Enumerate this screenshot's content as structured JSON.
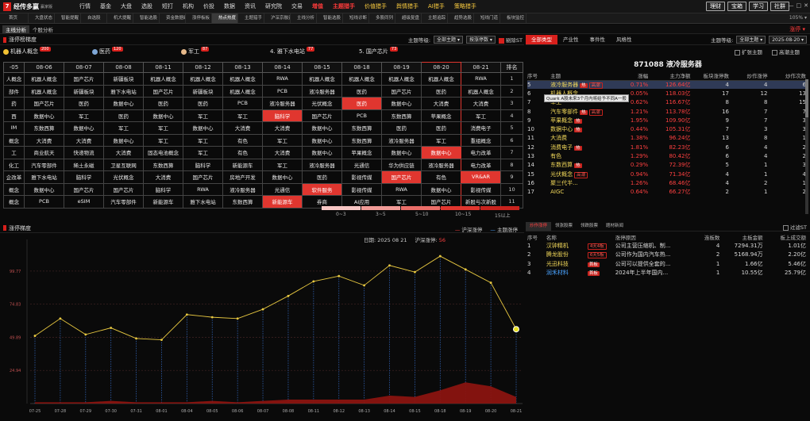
{
  "app": {
    "name": "经传多赢",
    "edition": "赢家版",
    "menu": [
      {
        "label": "行情",
        "style": ""
      },
      {
        "label": "基金",
        "style": ""
      },
      {
        "label": "大盘",
        "style": ""
      },
      {
        "label": "选股",
        "style": ""
      },
      {
        "label": "短打",
        "style": ""
      },
      {
        "label": "机构",
        "style": ""
      },
      {
        "label": "价投",
        "style": ""
      },
      {
        "label": "数据",
        "style": ""
      },
      {
        "label": "资讯",
        "style": ""
      },
      {
        "label": "研究院",
        "style": ""
      },
      {
        "label": "交易",
        "style": ""
      },
      {
        "label": "增值",
        "style": "red"
      },
      {
        "label": "主题猎手",
        "style": "red"
      },
      {
        "label": "价值猎手",
        "style": "gold"
      },
      {
        "label": "舆情猎手",
        "style": "gold"
      },
      {
        "label": "AI猎手",
        "style": "gold"
      },
      {
        "label": "策略猎手",
        "style": "gold"
      }
    ],
    "buttons": [
      "理财",
      "宝箱",
      "学习",
      "社群"
    ],
    "window_controls": [
      "—",
      "□",
      "✕"
    ]
  },
  "tabs": {
    "items": [
      "首页",
      "大盘状态",
      "智能提醒",
      "自选股",
      "机大提醒",
      "智能选股",
      "资金数据统计",
      "涨停板板",
      "热点热度",
      "主题猎手",
      "沪深京融资",
      "主线分析",
      "智能选股",
      "短线诊断",
      "多股同列",
      "超级复盘",
      "主题追踪",
      "趋势选股",
      "短线门道",
      "板块监控"
    ],
    "active_index": 8,
    "zoom": "105%"
  },
  "subtabs": {
    "items": [
      "主线分析",
      "个股分析"
    ],
    "active_index": 0,
    "exit_label": "涨停 ▾"
  },
  "ladder": {
    "title": "涨停榜梯度",
    "ctrl_label": "主题等级:",
    "ctrl_select": "全部主题",
    "ctrl_select2": "按涨停数",
    "exclude_st": "剔除ST",
    "hot": [
      {
        "name": "机器人概念",
        "count": "200",
        "color": "#f2c233"
      },
      {
        "name": "医药",
        "count": "120",
        "color": "#7fa7d6"
      },
      {
        "name": "军工",
        "count": "87",
        "color": "#e7b98a"
      },
      {
        "name": "4. 雅下水电站",
        "count": "77",
        "color": ""
      },
      {
        "name": "5. 国产芯片",
        "count": "73",
        "color": ""
      }
    ],
    "columns": [
      "-05",
      "08-06",
      "08-07",
      "08-08",
      "08-11",
      "08-12",
      "08-13",
      "08-14",
      "08-15",
      "08-18",
      "08-19",
      "08-20",
      "08-21",
      "排名"
    ],
    "selected_col": 11,
    "rows": [
      [
        "人概念",
        "机器人概念",
        "国产芯片",
        "新疆板块",
        "机器人概念",
        "机器人概念",
        "机器人概念",
        "RWA",
        "机器人概念",
        "机器人概念",
        "机器人概念",
        "机器人概念",
        "RWA",
        "1"
      ],
      [
        "部件",
        "机器人概念",
        "新疆板块",
        "雅下水电站",
        "国产芯片",
        "新疆板块",
        "机器人概念",
        "PCB",
        "液冷服务器",
        "医药",
        "国产芯片",
        "医药",
        "机器人概念",
        "2"
      ],
      [
        "药",
        "国产芯片",
        "医药",
        "数据中心",
        "医药",
        "医药",
        "PCB",
        "液冷服务器",
        "光伏概念",
        "医药",
        "数据中心",
        "大消费",
        "大消费",
        "3"
      ],
      [
        "西",
        "数据中心",
        "军工",
        "医药",
        "数据中心",
        "军工",
        "军工",
        "脑科学",
        "国产芯片",
        "PCB",
        "东数西算",
        "苹果概念",
        "军工",
        "4"
      ],
      [
        "IM",
        "东数西算",
        "数据中心",
        "军工",
        "军工",
        "数据中心",
        "大消费",
        "大消费",
        "数据中心",
        "东数西算",
        "医药",
        "医药",
        "消费电子",
        "5"
      ],
      [
        "概念",
        "大消费",
        "大消费",
        "数据中心",
        "军工",
        "军工",
        "有色",
        "军工",
        "数据中心",
        "东数西算",
        "液冷服务器",
        "军工",
        "重组概念",
        "6"
      ],
      [
        "工",
        "商业航天",
        "快递物流",
        "大消费",
        "固态电池概念",
        "军工",
        "有色",
        "大消费",
        "数据中心",
        "苹果概念",
        "数据中心",
        "数据中心",
        "电力改革",
        "7"
      ],
      [
        "化工",
        "汽车零部件",
        "稀土永磁",
        "卫星互联网",
        "东数西算",
        "脑科学",
        "新能源车",
        "军工",
        "液冷服务器",
        "光通信",
        "华为供应链",
        "液冷服务器",
        "电力改革",
        "8"
      ],
      [
        "企改革",
        "雅下水电站",
        "脑科学",
        "光伏概念",
        "大消费",
        "国产芯片",
        "房地产开发",
        "数据中心",
        "医药",
        "影视传媒",
        "国产芯片",
        "有色",
        "VR&AR",
        "9"
      ],
      [
        "概念",
        "数据中心",
        "国产芯片",
        "国产芯片",
        "脑科学",
        "RWA",
        "液冷服务器",
        "光通信",
        "软件服务",
        "影视传媒",
        "RWA",
        "数据中心",
        "影视传媒",
        "10"
      ],
      [
        "概念",
        "PCB",
        "eSIM",
        "汽车零部件",
        "新能源车",
        "雅下水电站",
        "东数西算",
        "新能源车",
        "券商",
        "AI应用",
        "军工",
        "国产芯片",
        "新股与次新股",
        "11"
      ]
    ],
    "highlights": [
      [
        2,
        9
      ],
      [
        3,
        7
      ],
      [
        6,
        11
      ],
      [
        8,
        10
      ],
      [
        8,
        12
      ],
      [
        9,
        8
      ],
      [
        10,
        7
      ]
    ],
    "legend": [
      {
        "label": "0~3",
        "color": "#f7c6c4"
      },
      {
        "label": "3~5",
        "color": "#f19b97"
      },
      {
        "label": "5~10",
        "color": "#ea6e69"
      },
      {
        "label": "10~15",
        "color": "#e0362f"
      },
      {
        "label": "15以上",
        "color": "#c8231e"
      }
    ]
  },
  "line_chart_panel": {
    "title": "涨停梯度",
    "legend_a": "沪深涨停",
    "legend_b": "主题涨停",
    "date_label": "日期: 2025 08 21",
    "hs_label": "沪深涨停:",
    "hs_value": "56"
  },
  "chart_data": {
    "type": "line",
    "x": [
      "07-25",
      "07-28",
      "07-29",
      "07-30",
      "07-31",
      "08-01",
      "08-04",
      "08-05",
      "08-06",
      "08-07",
      "08-08",
      "08-11",
      "08-12",
      "08-13",
      "08-14",
      "08-15",
      "08-18",
      "08-19",
      "08-20",
      "08-21"
    ],
    "series": [
      {
        "name": "沪深涨停",
        "values": [
          51,
          64,
          52,
          57,
          49,
          48,
          67,
          65,
          64,
          71,
          81,
          92,
          96,
          89,
          104,
          99,
          111,
          101,
          91,
          56
        ]
      },
      {
        "name": "主题涨停",
        "values": [
          1,
          1,
          1,
          2,
          1,
          1,
          1,
          2,
          1,
          2,
          3,
          3,
          3,
          3,
          6,
          5,
          10,
          16,
          13,
          5
        ]
      }
    ],
    "y_ticks": [
      24.94,
      49.89,
      74.83,
      99.77
    ],
    "ylim": [
      0,
      120
    ],
    "grid": true
  },
  "right_panel": {
    "tabs": [
      "全部类型",
      "产业性",
      "事件性",
      "风格性"
    ],
    "active_tab": 0,
    "ctrl_label": "主题等级:",
    "ctrl_select": "全部主题",
    "date": "2025-08-20",
    "opt_a": "扩张主题",
    "opt_b": "高潮主题",
    "stock_title": "871088 液冷服务器",
    "headers": [
      "序号",
      "主题",
      "涨幅",
      "主力净额",
      "板块涨停数",
      "炒作涨停",
      "炒作次数"
    ],
    "rows": [
      [
        "5",
        "液冷服务器",
        "热",
        "高潮",
        "0.71%",
        "126.64亿",
        "4",
        "4",
        "6"
      ],
      [
        "6",
        "机器人概念",
        "",
        "",
        "0.05%",
        "118.03亿",
        "17",
        "12",
        "13"
      ],
      [
        "7",
        "军工",
        "",
        "",
        "0.62%",
        "116.67亿",
        "8",
        "8",
        "15"
      ],
      [
        "8",
        "汽车零部件",
        "热",
        "高潮",
        "1.21%",
        "113.78亿",
        "16",
        "7",
        "7"
      ],
      [
        "9",
        "苹果概念",
        "热",
        "",
        "1.95%",
        "109.90亿",
        "9",
        "7",
        "3"
      ],
      [
        "10",
        "数据中心",
        "热",
        "",
        "0.44%",
        "105.31亿",
        "7",
        "3",
        "3"
      ],
      [
        "11",
        "大消费",
        "",
        "",
        "1.38%",
        "96.24亿",
        "13",
        "8",
        "1"
      ],
      [
        "12",
        "消费电子",
        "热",
        "",
        "1.81%",
        "82.23亿",
        "6",
        "4",
        "2"
      ],
      [
        "13",
        "有色",
        "",
        "",
        "1.29%",
        "80.42亿",
        "6",
        "4",
        "2"
      ],
      [
        "14",
        "东数西算",
        "热",
        "",
        "0.29%",
        "72.39亿",
        "5",
        "1",
        "3"
      ],
      [
        "15",
        "光伏概念",
        "",
        "高潮",
        "0.94%",
        "71.34亿",
        "4",
        "1",
        "4"
      ],
      [
        "16",
        "聚三代半...",
        "",
        "",
        "1.26%",
        "68.46亿",
        "4",
        "2",
        "1"
      ],
      [
        "17",
        "AIGC",
        "",
        "",
        "0.64%",
        "66.27亿",
        "2",
        "1",
        "2"
      ]
    ],
    "tooltip": "Quark A股未来3个月内将给予不同A一般"
  },
  "bottom_right": {
    "tabs": [
      "炒作涨停",
      "领涨股票",
      "领跌股票",
      "题材新闻"
    ],
    "active_tab": 0,
    "filter": "过滤ST",
    "headers": [
      "序号",
      "名称",
      "",
      "涨停原因",
      "连板数",
      "主板金额",
      "板上成交额"
    ],
    "rows": [
      {
        "no": "1",
        "name": "汉钟精机",
        "tag": "4天4板",
        "reason": "公司主营压缩机、制...",
        "boards": "4",
        "amount": "7294.31万",
        "vol": "1.01亿",
        "blue": false
      },
      {
        "no": "2",
        "name": "腾龙股份",
        "tag": "6天5板",
        "reason": "公司作为国内汽车热...",
        "boards": "2",
        "amount": "5168.94万",
        "vol": "2.20亿",
        "blue": false,
        "pre": "龙"
      },
      {
        "no": "3",
        "name": "光迅科技",
        "tag": "首板",
        "reason": "公司可以提供全套的...",
        "boards": "1",
        "amount": "1.66亿",
        "vol": "5.46亿",
        "blue": false
      },
      {
        "no": "4",
        "name": "润禾材料",
        "tag": "首板",
        "reason": "2024年上半年国内...",
        "boards": "1",
        "amount": "10.55亿",
        "vol": "25.79亿",
        "blue": true
      }
    ]
  }
}
